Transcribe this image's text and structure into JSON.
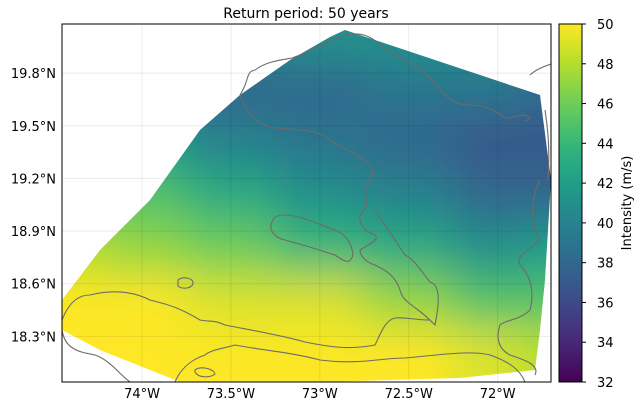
{
  "chart_data": {
    "type": "heatmap",
    "title": "Return period: 50 years",
    "xlabel": "",
    "ylabel": "",
    "x_ticks": [
      {
        "value": -74.0,
        "label": "74°W"
      },
      {
        "value": -73.5,
        "label": "73.5°W"
      },
      {
        "value": -73.0,
        "label": "73°W"
      },
      {
        "value": -72.5,
        "label": "72.5°W"
      },
      {
        "value": -72.0,
        "label": "72°W"
      }
    ],
    "y_ticks": [
      {
        "value": 19.8,
        "label": "19.8°N"
      },
      {
        "value": 19.5,
        "label": "19.5°N"
      },
      {
        "value": 19.2,
        "label": "19.2°N"
      },
      {
        "value": 18.9,
        "label": "18.9°N"
      },
      {
        "value": 18.6,
        "label": "18.6°N"
      },
      {
        "value": 18.3,
        "label": "18.3°N"
      }
    ],
    "xlim": [
      -74.45,
      -71.7
    ],
    "ylim": [
      18.04,
      20.08
    ],
    "grid": true,
    "colormap": "viridis",
    "colorbar": {
      "label": "Intensity (m/s)",
      "range": [
        32,
        50
      ],
      "ticks": [
        "32",
        "34",
        "36",
        "38",
        "40",
        "42",
        "44",
        "46",
        "48",
        "50"
      ]
    },
    "lon": [
      -74.4,
      -74.0,
      -73.5,
      -73.0,
      -72.5,
      -72.0,
      -71.7
    ],
    "lat": [
      20.0,
      19.7,
      19.4,
      19.1,
      18.8,
      18.5,
      18.2
    ],
    "values": [
      [
        40,
        40,
        40,
        41,
        41,
        41,
        40
      ],
      [
        40,
        39,
        38,
        38,
        39,
        39,
        38
      ],
      [
        44,
        42,
        40,
        39,
        38,
        37,
        37
      ],
      [
        46,
        45,
        43,
        41,
        40,
        38,
        38
      ],
      [
        48,
        47,
        46,
        44,
        43,
        41,
        42
      ],
      [
        50,
        50,
        49,
        49,
        47,
        45,
        45
      ],
      [
        50,
        50,
        50,
        50,
        50,
        49,
        48
      ]
    ]
  }
}
